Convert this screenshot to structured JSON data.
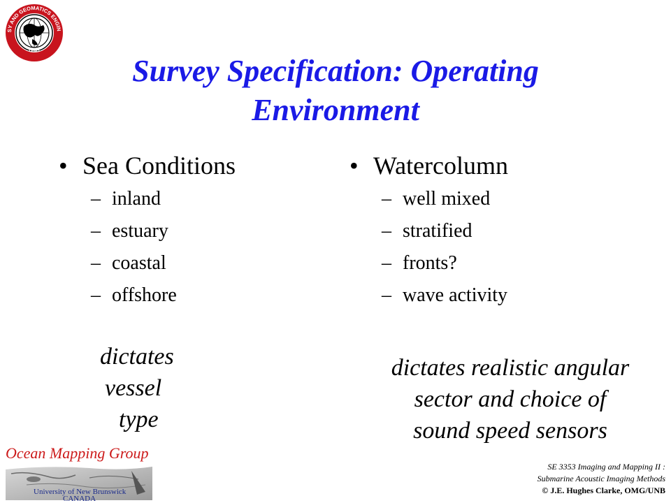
{
  "logo": {
    "name": "unb-geodesy-seal",
    "ring_text": "GEODESY AND GEOMATICS ENGINEERING",
    "bottom_text": "UNB"
  },
  "title": {
    "line1": "Survey Specification:  Operating",
    "line2": "Environment",
    "color": "#1a1ae6"
  },
  "left_column": {
    "bullet": "Sea Conditions",
    "items": [
      "inland",
      "estuary",
      "coastal",
      "offshore"
    ],
    "note": [
      "dictates",
      "vessel",
      "type"
    ]
  },
  "right_column": {
    "bullet": "Watercolumn",
    "items": [
      "well mixed",
      "stratified",
      "fronts?",
      "wave activity"
    ],
    "note": [
      "dictates realistic angular",
      "sector and choice of",
      "sound speed sensors"
    ]
  },
  "omg_logo": {
    "title": "Ocean Mapping Group",
    "line1": "University of New Brunswick",
    "line2": "CANADA",
    "title_color": "#cc1a1a"
  },
  "footer": {
    "course_line1": "SE 3353 Imaging and Mapping II :",
    "course_line2": "Submarine Acoustic Imaging Methods",
    "copyright": "© J.E. Hughes Clarke, OMG/UNB"
  }
}
